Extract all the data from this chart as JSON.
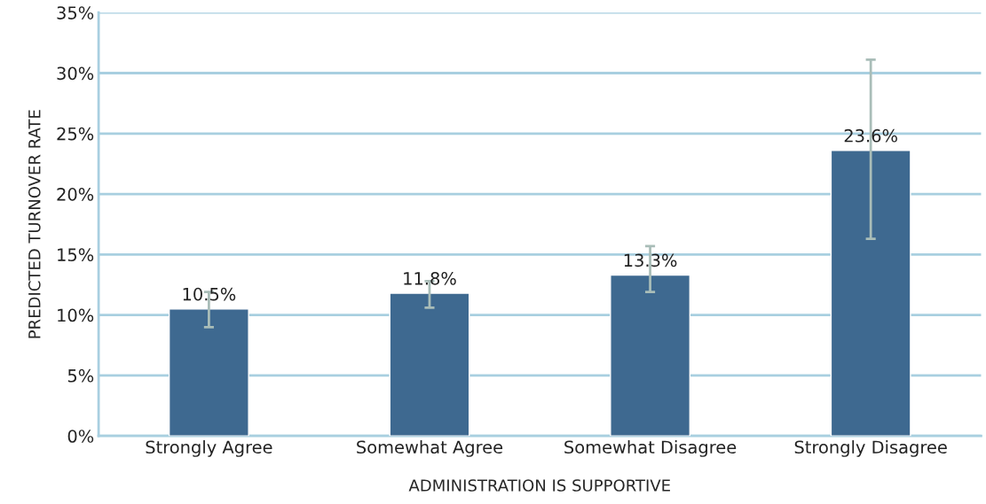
{
  "chart_data": {
    "type": "bar",
    "xlabel": "ADMINISTRATION IS SUPPORTIVE",
    "ylabel": "PREDICTED TURNOVER RATE",
    "categories": [
      "Strongly Agree",
      "Somewhat Agree",
      "Somewhat Disagree",
      "Strongly Disagree"
    ],
    "values": [
      10.5,
      11.8,
      13.3,
      23.6
    ],
    "value_labels": [
      "10.5%",
      "11.8%",
      "13.3%",
      "23.6%"
    ],
    "errors": [
      [
        9.0,
        11.9
      ],
      [
        10.6,
        12.8
      ],
      [
        11.9,
        15.7
      ],
      [
        16.3,
        31.1
      ]
    ],
    "color": "#3e6990",
    "ylim": [
      0,
      35
    ],
    "yticks": [
      {
        "value": 0,
        "label": "0%"
      },
      {
        "value": 5,
        "label": "5%"
      },
      {
        "value": 10,
        "label": "10%"
      },
      {
        "value": 15,
        "label": "15%"
      },
      {
        "value": 20,
        "label": "20%"
      },
      {
        "value": 25,
        "label": "25%"
      },
      {
        "value": 30,
        "label": "30%"
      },
      {
        "value": 35,
        "label": "35%"
      }
    ],
    "grid": "y",
    "legend": false
  }
}
